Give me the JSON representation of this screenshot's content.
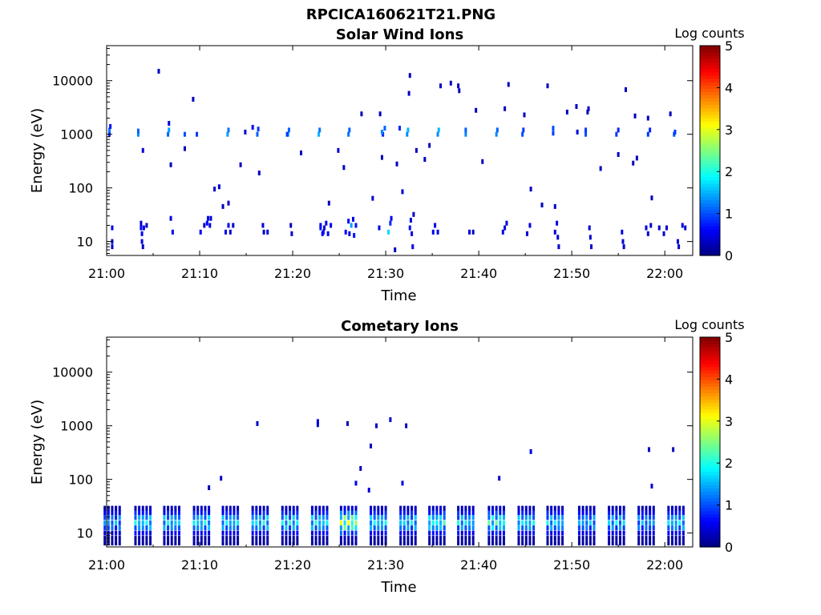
{
  "figure": {
    "title": "RPCICA160621T21.PNG"
  },
  "colormap": "jet",
  "chart_data": [
    {
      "type": "heatmap",
      "title": "Solar Wind Ions",
      "xlabel": "Time",
      "ylabel": "Energy (eV)",
      "x_ticks": [
        "21:00",
        "21:10",
        "21:20",
        "21:30",
        "21:40",
        "21:50",
        "22:00"
      ],
      "x_tick_minutes": [
        0,
        10,
        20,
        30,
        40,
        50,
        60
      ],
      "xlim_minutes": [
        0,
        63
      ],
      "y_scale": "log",
      "y_ticks": [
        "10",
        "100",
        "1000",
        "10000"
      ],
      "y_tick_values": [
        10,
        100,
        1000,
        10000
      ],
      "ylim": [
        5.5,
        45000
      ],
      "colorbar": {
        "label": "Log counts",
        "ticks": [
          "0",
          "1",
          "2",
          "3",
          "4",
          "5"
        ],
        "min": 0,
        "max": 5
      },
      "cells": [
        [
          0.3,
          1000,
          0.8
        ],
        [
          0.3,
          1200,
          1.2
        ],
        [
          0.4,
          1400,
          0.7
        ],
        [
          0.6,
          18,
          0.5
        ],
        [
          0.6,
          10,
          0.3
        ],
        [
          0.6,
          8,
          0.4
        ],
        [
          3.4,
          1000,
          1.3
        ],
        [
          3.4,
          1150,
          1.1
        ],
        [
          3.7,
          18,
          0.6
        ],
        [
          3.7,
          22,
          0.4
        ],
        [
          3.8,
          14,
          0.6
        ],
        [
          3.8,
          10,
          0.5
        ],
        [
          3.9,
          8,
          0.3
        ],
        [
          4.0,
          18,
          0.5
        ],
        [
          4.3,
          20,
          0.3
        ],
        [
          3.9,
          500,
          0.4
        ],
        [
          5.6,
          15000,
          0.3
        ],
        [
          6.6,
          1000,
          1.1
        ],
        [
          6.7,
          1200,
          1.4
        ],
        [
          6.7,
          1600,
          0.5
        ],
        [
          6.9,
          27,
          0.5
        ],
        [
          7.1,
          15,
          0.5
        ],
        [
          6.9,
          270,
          0.3
        ],
        [
          8.4,
          1000,
          1.0
        ],
        [
          8.4,
          540,
          0.3
        ],
        [
          9.3,
          4500,
          0.3
        ],
        [
          9.7,
          1000,
          0.9
        ],
        [
          10.1,
          15,
          0.5
        ],
        [
          10.5,
          20,
          0.4
        ],
        [
          10.8,
          22,
          0.6
        ],
        [
          10.9,
          27,
          0.5
        ],
        [
          11.1,
          20,
          0.5
        ],
        [
          11.2,
          27,
          0.4
        ],
        [
          11.6,
          95,
          0.4
        ],
        [
          12.1,
          105,
          0.4
        ],
        [
          12.5,
          45,
          0.3
        ],
        [
          13.1,
          52,
          0.3
        ],
        [
          12.8,
          15,
          0.5
        ],
        [
          13.1,
          20,
          0.6
        ],
        [
          13.3,
          15,
          0.4
        ],
        [
          13.6,
          20,
          0.4
        ],
        [
          13.0,
          1000,
          1.4
        ],
        [
          13.1,
          1200,
          1.2
        ],
        [
          14.4,
          270,
          0.3
        ],
        [
          14.9,
          1100,
          0.4
        ],
        [
          15.7,
          1350,
          0.6
        ],
        [
          16.2,
          1000,
          1.1
        ],
        [
          16.3,
          1250,
          0.9
        ],
        [
          16.4,
          190,
          0.3
        ],
        [
          16.8,
          20,
          0.4
        ],
        [
          16.9,
          15,
          0.3
        ],
        [
          17.3,
          15,
          0.5
        ],
        [
          19.5,
          1000,
          1.4
        ],
        [
          19.6,
          1200,
          1.1
        ],
        [
          19.4,
          1000,
          0.9
        ],
        [
          20.9,
          450,
          0.3
        ],
        [
          19.8,
          20,
          0.3
        ],
        [
          19.9,
          14,
          0.4
        ],
        [
          22.8,
          1000,
          1.5
        ],
        [
          22.9,
          1200,
          1.2
        ],
        [
          23.0,
          20,
          0.5
        ],
        [
          23.2,
          14,
          0.5
        ],
        [
          23.4,
          18,
          0.4
        ],
        [
          23.9,
          52,
          0.3
        ],
        [
          23.0,
          18,
          0.7
        ],
        [
          23.3,
          15,
          0.6
        ],
        [
          23.6,
          22,
          0.5
        ],
        [
          23.8,
          14,
          0.6
        ],
        [
          24.1,
          20,
          0.5
        ],
        [
          24.9,
          500,
          0.4
        ],
        [
          25.5,
          240,
          0.3
        ],
        [
          25.7,
          15,
          0.6
        ],
        [
          26.0,
          24,
          0.6
        ],
        [
          26.1,
          14,
          0.5
        ],
        [
          26.3,
          20,
          1.4
        ],
        [
          26.5,
          26,
          0.5
        ],
        [
          26.6,
          13,
          0.7
        ],
        [
          26.8,
          20,
          0.7
        ],
        [
          26.0,
          1000,
          1.2
        ],
        [
          26.1,
          1200,
          1.1
        ],
        [
          27.4,
          2400,
          0.3
        ],
        [
          28.6,
          64,
          0.4
        ],
        [
          29.3,
          18,
          0.5
        ],
        [
          29.7,
          1000,
          0.8
        ],
        [
          29.9,
          1300,
          1.1
        ],
        [
          29.6,
          1100,
          1.3
        ],
        [
          29.4,
          2400,
          0.3
        ],
        [
          29.6,
          370,
          0.3
        ],
        [
          30.3,
          15,
          1.7
        ],
        [
          30.5,
          22,
          0.8
        ],
        [
          30.6,
          27,
          0.5
        ],
        [
          31.2,
          280,
          0.3
        ],
        [
          31.5,
          1300,
          0.8
        ],
        [
          31.8,
          85,
          0.4
        ],
        [
          32.3,
          1000,
          1.3
        ],
        [
          32.4,
          1200,
          1.5
        ],
        [
          32.7,
          25,
          0.5
        ],
        [
          32.6,
          18,
          0.7
        ],
        [
          32.8,
          14,
          0.5
        ],
        [
          32.9,
          8,
          0.6
        ],
        [
          31.0,
          7,
          0.3
        ],
        [
          32.5,
          5800,
          0.3
        ],
        [
          32.6,
          12500,
          0.3
        ],
        [
          33.0,
          32,
          0.3
        ],
        [
          33.3,
          500,
          0.3
        ],
        [
          34.2,
          340,
          0.3
        ],
        [
          34.7,
          620,
          0.3
        ],
        [
          35.1,
          15,
          0.6
        ],
        [
          35.3,
          20,
          0.5
        ],
        [
          35.6,
          15,
          0.5
        ],
        [
          35.9,
          8000,
          0.3
        ],
        [
          35.6,
          1000,
          1.3
        ],
        [
          35.7,
          1200,
          1.5
        ],
        [
          37.0,
          9000,
          0.3
        ],
        [
          37.8,
          8000,
          0.3
        ],
        [
          37.9,
          6500,
          0.3
        ],
        [
          38.6,
          1000,
          1.3
        ],
        [
          38.6,
          1200,
          1.1
        ],
        [
          39.0,
          15,
          0.4
        ],
        [
          39.4,
          15,
          0.4
        ],
        [
          39.7,
          2800,
          0.3
        ],
        [
          40.4,
          310,
          0.3
        ],
        [
          41.9,
          1000,
          1.3
        ],
        [
          42.0,
          1200,
          1.1
        ],
        [
          42.6,
          15,
          0.5
        ],
        [
          42.8,
          18,
          0.4
        ],
        [
          43.0,
          22,
          0.5
        ],
        [
          42.8,
          3000,
          0.3
        ],
        [
          43.2,
          8500,
          0.3
        ],
        [
          44.9,
          2300,
          0.3
        ],
        [
          45.6,
          95,
          0.3
        ],
        [
          44.7,
          1000,
          1.0
        ],
        [
          44.8,
          1200,
          0.9
        ],
        [
          45.2,
          14,
          0.4
        ],
        [
          45.5,
          20,
          0.5
        ],
        [
          46.8,
          48,
          0.3
        ],
        [
          47.4,
          8000,
          0.3
        ],
        [
          48.2,
          45,
          0.4
        ],
        [
          48.0,
          1050,
          0.9
        ],
        [
          48.0,
          1300,
          1.0
        ],
        [
          48.2,
          15,
          0.5
        ],
        [
          48.4,
          22,
          0.5
        ],
        [
          48.5,
          12,
          0.4
        ],
        [
          48.6,
          8,
          0.4
        ],
        [
          49.5,
          2600,
          0.3
        ],
        [
          50.5,
          3300,
          0.3
        ],
        [
          50.6,
          1100,
          0.5
        ],
        [
          51.5,
          1000,
          1.0
        ],
        [
          51.5,
          1200,
          0.9
        ],
        [
          51.7,
          2600,
          0.3
        ],
        [
          51.8,
          3000,
          0.3
        ],
        [
          51.9,
          18,
          0.4
        ],
        [
          52.0,
          12,
          0.4
        ],
        [
          52.1,
          8,
          0.4
        ],
        [
          53.1,
          230,
          0.3
        ],
        [
          54.8,
          1000,
          0.9
        ],
        [
          55.0,
          1200,
          0.8
        ],
        [
          55.0,
          420,
          0.3
        ],
        [
          55.4,
          15,
          0.5
        ],
        [
          55.5,
          10,
          0.4
        ],
        [
          55.6,
          8,
          0.4
        ],
        [
          55.8,
          6800,
          0.3
        ],
        [
          56.6,
          290,
          0.3
        ],
        [
          56.8,
          2200,
          0.3
        ],
        [
          57.0,
          360,
          0.3
        ],
        [
          58.0,
          18,
          0.5
        ],
        [
          58.2,
          14,
          0.4
        ],
        [
          58.5,
          20,
          0.4
        ],
        [
          58.6,
          65,
          0.3
        ],
        [
          58.2,
          1000,
          0.9
        ],
        [
          58.4,
          1200,
          0.8
        ],
        [
          58.2,
          2000,
          0.3
        ],
        [
          59.4,
          18,
          0.4
        ],
        [
          59.9,
          14,
          0.4
        ],
        [
          60.2,
          18,
          0.4
        ],
        [
          60.6,
          2400,
          0.3
        ],
        [
          61.0,
          1000,
          1.0
        ],
        [
          61.1,
          1100,
          0.9
        ],
        [
          61.4,
          10,
          0.4
        ],
        [
          61.5,
          8,
          0.4
        ],
        [
          61.9,
          20,
          0.5
        ],
        [
          62.2,
          18,
          0.4
        ]
      ]
    },
    {
      "type": "heatmap",
      "title": "Cometary Ions",
      "xlabel": "Time",
      "ylabel": "Energy (eV)",
      "x_ticks": [
        "21:00",
        "21:10",
        "21:20",
        "21:30",
        "21:40",
        "21:50",
        "22:00"
      ],
      "x_tick_minutes": [
        0,
        10,
        20,
        30,
        40,
        50,
        60
      ],
      "xlim_minutes": [
        0,
        63
      ],
      "y_scale": "log",
      "y_ticks": [
        "10",
        "100",
        "1000",
        "10000"
      ],
      "y_tick_values": [
        10,
        100,
        1000,
        10000
      ],
      "ylim": [
        5.5,
        45000
      ],
      "colorbar": {
        "label": "Log counts",
        "ticks": [
          "0",
          "1",
          "2",
          "3",
          "4",
          "5"
        ],
        "min": 0,
        "max": 5
      },
      "burst_times": [
        0.6,
        3.9,
        7.0,
        10.2,
        13.3,
        16.5,
        19.7,
        22.9,
        26.0,
        29.2,
        32.4,
        35.5,
        38.6,
        41.9,
        45.1,
        48.2,
        51.6,
        54.8,
        58.0,
        61.2
      ],
      "burst_intensity": [
        1.5,
        1.9,
        1.8,
        1.9,
        1.8,
        1.9,
        1.9,
        1.9,
        2.9,
        1.9,
        1.8,
        2.1,
        1.8,
        2.2,
        1.9,
        1.8,
        1.6,
        1.7,
        1.5,
        1.8
      ],
      "cells": [
        [
          11.0,
          70,
          0.3
        ],
        [
          12.3,
          105,
          0.3
        ],
        [
          16.2,
          1100,
          0.4
        ],
        [
          22.7,
          1050,
          0.4
        ],
        [
          22.7,
          1200,
          0.4
        ],
        [
          25.9,
          1100,
          0.3
        ],
        [
          26.8,
          85,
          0.5
        ],
        [
          27.3,
          160,
          0.3
        ],
        [
          28.2,
          63,
          0.4
        ],
        [
          28.4,
          420,
          0.3
        ],
        [
          29.0,
          1000,
          0.3
        ],
        [
          30.5,
          1300,
          0.4
        ],
        [
          31.8,
          85,
          0.5
        ],
        [
          32.2,
          1000,
          0.3
        ],
        [
          42.2,
          105,
          0.4
        ],
        [
          45.6,
          330,
          0.5
        ],
        [
          58.3,
          360,
          0.3
        ],
        [
          58.6,
          75,
          0.4
        ],
        [
          60.9,
          360,
          0.3
        ]
      ]
    }
  ]
}
